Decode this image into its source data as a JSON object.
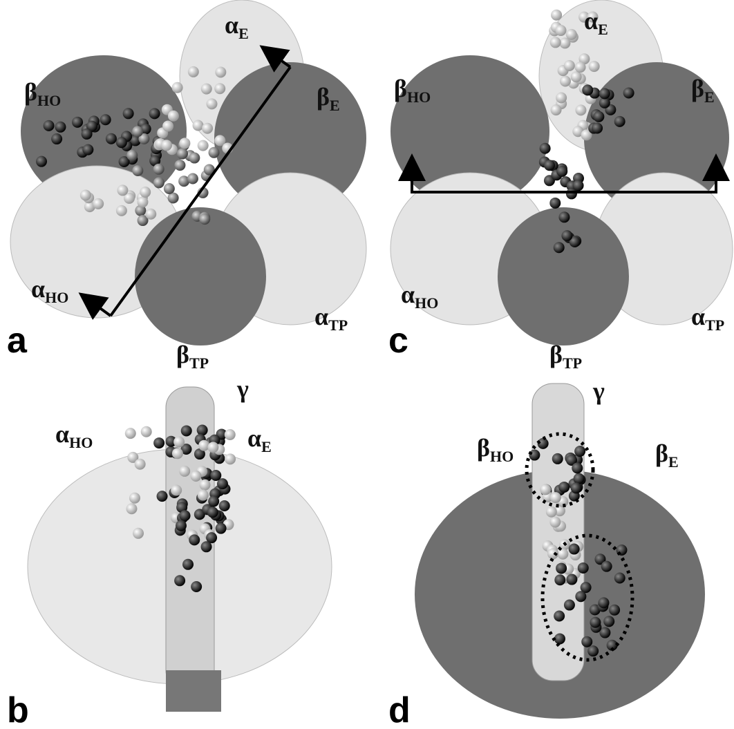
{
  "panels": [
    {
      "label": "a",
      "annotations": [
        {
          "symbol": "α",
          "subscript": "E"
        },
        {
          "symbol": "β",
          "subscript": "HO"
        },
        {
          "symbol": "β",
          "subscript": "E"
        },
        {
          "symbol": "α",
          "subscript": "HO"
        },
        {
          "symbol": "α",
          "subscript": "TP"
        },
        {
          "symbol": "β",
          "subscript": "TP"
        }
      ]
    },
    {
      "label": "c",
      "annotations": [
        {
          "symbol": "α",
          "subscript": "E"
        },
        {
          "symbol": "β",
          "subscript": "HO"
        },
        {
          "symbol": "β",
          "subscript": "E"
        },
        {
          "symbol": "α",
          "subscript": "HO"
        },
        {
          "symbol": "α",
          "subscript": "TP"
        },
        {
          "symbol": "β",
          "subscript": "TP"
        }
      ]
    },
    {
      "label": "b",
      "annotations": [
        {
          "symbol": "γ"
        },
        {
          "symbol": "α",
          "subscript": "HO"
        },
        {
          "symbol": "α",
          "subscript": "E"
        }
      ]
    },
    {
      "label": "d",
      "annotations": [
        {
          "symbol": "γ"
        },
        {
          "symbol": "β",
          "subscript": "HO"
        },
        {
          "symbol": "β",
          "subscript": "E"
        }
      ]
    }
  ]
}
